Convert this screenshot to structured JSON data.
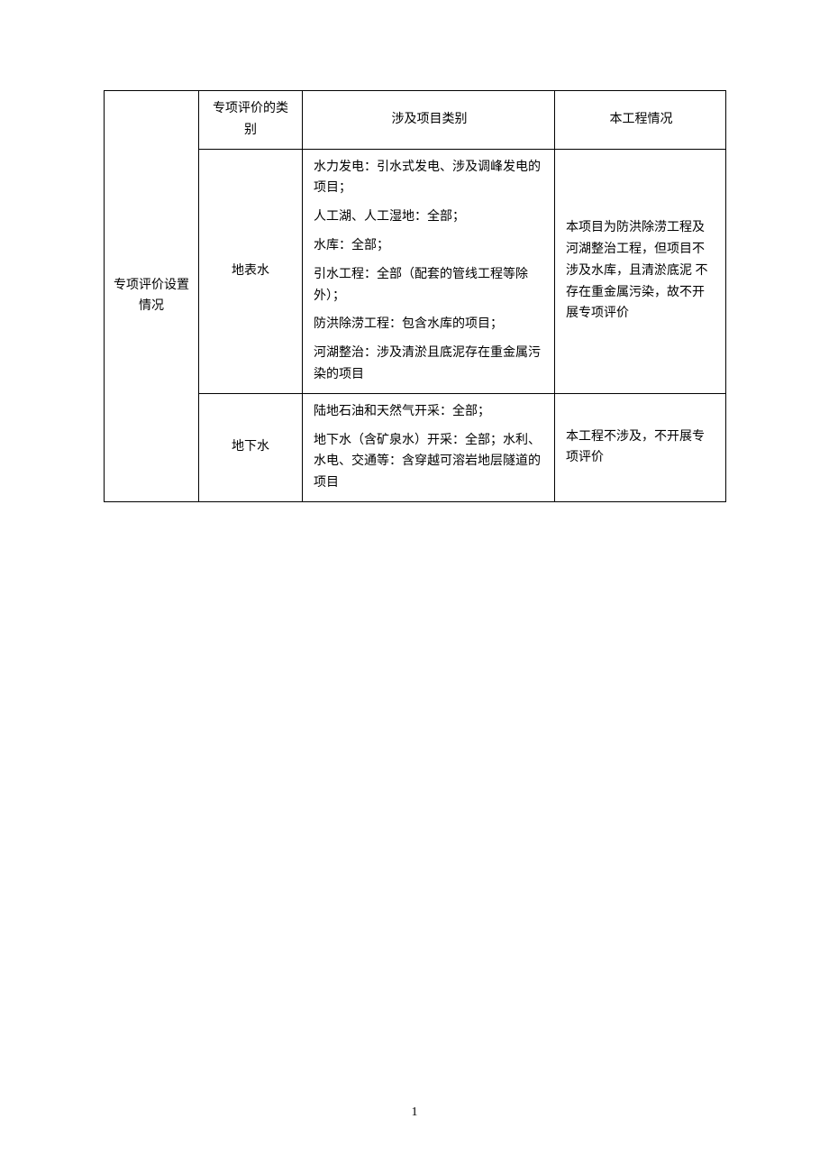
{
  "table": {
    "colors": {
      "border": "#000000",
      "text": "#000000",
      "background": "#ffffff"
    },
    "fontSize": 14,
    "header": {
      "col2": "专项评价的类别",
      "col3": "涉及项目类别",
      "col4": "本工程情况"
    },
    "rowspan_label": "专项评价设置情况",
    "rows": [
      {
        "category": "地表水",
        "project_types": [
          "水力发电：引水式发电、涉及调峰发电的项目；",
          "人工湖、人工湿地：全部；",
          "水库：全部；",
          "引水工程：全部（配套的管线工程等除外）；",
          "防洪除涝工程：包含水库的项目；",
          "河湖整治：涉及清淤且底泥存在重金属污染的项目"
        ],
        "situation": "本项目为防洪除涝工程及河湖整治工程，但项目不涉及水库，且清淤底泥 不存在重金属污染，故不开展专项评价"
      },
      {
        "category": "地下水",
        "project_types": [
          "陆地石油和天然气开采：全部；",
          "地下水（含矿泉水）开采：全部；水利、水电、交通等：含穿越可溶岩地层隧道的项目"
        ],
        "situation": "本工程不涉及，不开展专项评价"
      }
    ]
  },
  "page_number": "1"
}
